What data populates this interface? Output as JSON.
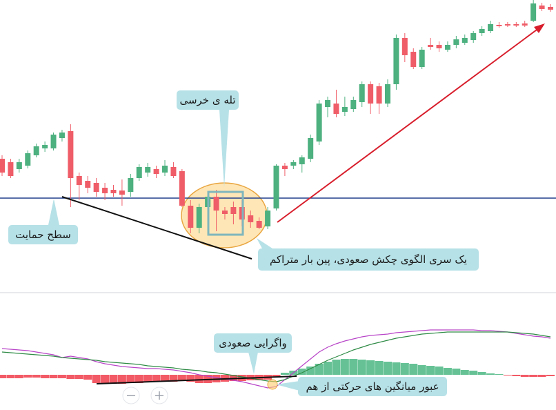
{
  "chart_data": {
    "type": "candlestick",
    "up_color": "#4cb07f",
    "down_color": "#ef5d68",
    "ylim": [
      0,
      420
    ],
    "ohlc": [
      [
        190,
        195,
        165,
        170
      ],
      [
        185,
        190,
        162,
        165
      ],
      [
        175,
        190,
        170,
        185
      ],
      [
        180,
        202,
        176,
        198
      ],
      [
        195,
        212,
        192,
        208
      ],
      [
        205,
        215,
        200,
        210
      ],
      [
        205,
        228,
        202,
        225
      ],
      [
        220,
        232,
        215,
        228
      ],
      [
        230,
        240,
        120,
        162
      ],
      [
        165,
        170,
        130,
        152
      ],
      [
        158,
        165,
        140,
        148
      ],
      [
        155,
        162,
        135,
        142
      ],
      [
        148,
        155,
        130,
        140
      ],
      [
        145,
        152,
        135,
        140
      ],
      [
        144,
        160,
        122,
        138
      ],
      [
        142,
        168,
        135,
        162
      ],
      [
        162,
        182,
        158,
        178
      ],
      [
        170,
        184,
        164,
        178
      ],
      [
        175,
        180,
        162,
        168
      ],
      [
        170,
        188,
        165,
        180
      ],
      [
        178,
        185,
        162,
        165
      ],
      [
        172,
        175,
        120,
        122
      ],
      [
        122,
        130,
        82,
        90
      ],
      [
        90,
        125,
        82,
        120
      ],
      [
        120,
        140,
        102,
        135
      ],
      [
        135,
        145,
        85,
        115
      ],
      [
        115,
        120,
        102,
        110
      ],
      [
        120,
        128,
        95,
        110
      ],
      [
        120,
        130,
        92,
        102
      ],
      [
        108,
        115,
        90,
        98
      ],
      [
        100,
        105,
        88,
        90
      ],
      [
        92,
        120,
        88,
        115
      ],
      [
        118,
        182,
        115,
        180
      ],
      [
        180,
        184,
        165,
        175
      ],
      [
        180,
        188,
        175,
        185
      ],
      [
        182,
        195,
        170,
        192
      ],
      [
        190,
        225,
        185,
        220
      ],
      [
        215,
        275,
        210,
        270
      ],
      [
        265,
        280,
        250,
        275
      ],
      [
        270,
        290,
        250,
        255
      ],
      [
        258,
        280,
        252,
        265
      ],
      [
        262,
        280,
        258,
        275
      ],
      [
        272,
        302,
        265,
        298
      ],
      [
        298,
        302,
        255,
        270
      ],
      [
        295,
        300,
        255,
        270
      ],
      [
        270,
        305,
        265,
        298
      ],
      [
        298,
        370,
        290,
        365
      ],
      [
        365,
        372,
        330,
        340
      ],
      [
        345,
        350,
        320,
        323
      ],
      [
        323,
        352,
        320,
        348
      ],
      [
        355,
        365,
        348,
        352
      ],
      [
        355,
        360,
        345,
        350
      ],
      [
        348,
        360,
        345,
        355
      ],
      [
        355,
        368,
        350,
        363
      ],
      [
        358,
        370,
        355,
        365
      ],
      [
        362,
        375,
        358,
        372
      ],
      [
        372,
        382,
        368,
        378
      ],
      [
        375,
        390,
        372,
        385
      ],
      [
        384,
        388,
        380,
        382
      ],
      [
        385,
        388,
        381,
        383
      ],
      [
        385,
        388,
        381,
        383
      ],
      [
        386,
        390,
        381,
        383
      ],
      [
        390,
        420,
        388,
        415
      ],
      [
        412,
        416,
        404,
        407
      ],
      [
        410,
        414,
        403,
        406
      ]
    ],
    "support_level": 133,
    "support_color": "#1f3f8c",
    "indicator": {
      "ylim": [
        -51,
        117
      ],
      "hist_up_color": "#66c295",
      "hist_down_color": "#f25a65",
      "histogram": [
        -5,
        -5,
        -5,
        -4,
        -4,
        -5,
        -5,
        -5,
        -6,
        -6,
        -7,
        -12,
        -13,
        -13,
        -13,
        -12,
        -12,
        -11,
        -10,
        -10,
        -10,
        -9,
        -10,
        -12,
        -12,
        -11,
        -10,
        -9,
        -9,
        -8,
        -8,
        -7,
        -4,
        3,
        6,
        9,
        12,
        16,
        19,
        22,
        23,
        23,
        22,
        21,
        20,
        19,
        18,
        17,
        16,
        14,
        13,
        12,
        10,
        9,
        7,
        6,
        4,
        2,
        1,
        -1,
        -2,
        -3,
        -3,
        -3,
        -2
      ],
      "lines": [
        {
          "color": "#b844c8",
          "values": [
            38,
            37,
            36,
            35,
            33,
            31,
            29,
            25,
            27,
            25,
            23,
            19,
            16,
            14,
            12,
            11,
            10,
            9,
            9,
            8,
            7,
            5,
            3,
            0,
            -2,
            -4,
            -6,
            -8,
            -10,
            -13,
            -16,
            -19,
            -17,
            -7,
            3,
            13,
            23,
            33,
            40,
            45,
            49,
            52,
            55,
            57,
            58,
            59,
            61,
            62,
            63,
            64,
            65,
            65,
            65,
            65,
            65,
            65,
            64,
            64,
            63,
            62,
            60,
            58,
            56,
            55,
            53
          ]
        },
        {
          "color": "#2e8b45",
          "values": [
            33,
            32,
            31,
            30,
            29,
            28,
            27,
            25,
            24,
            23,
            22,
            21,
            19,
            18,
            17,
            16,
            15,
            13,
            12,
            11,
            10,
            8,
            7,
            6,
            4,
            3,
            1,
            -1,
            -3,
            -5,
            -7,
            -9,
            -10,
            -7,
            -2,
            3,
            9,
            15,
            21,
            26,
            31,
            36,
            40,
            44,
            47,
            50,
            53,
            55,
            57,
            59,
            60,
            61,
            62,
            62,
            62,
            62,
            62,
            62,
            62,
            62,
            61,
            60,
            59,
            57,
            55
          ]
        }
      ]
    },
    "annotations": {
      "bear_trap": "تله ی خرسی",
      "support": "سطح حمایت",
      "hammers": "یک سری الگوی چکش صعودی،  پین بار متراکم",
      "divergence": "واگرایی صعودی",
      "crossover": "عبور میانگین های حرکتی از هم"
    }
  }
}
